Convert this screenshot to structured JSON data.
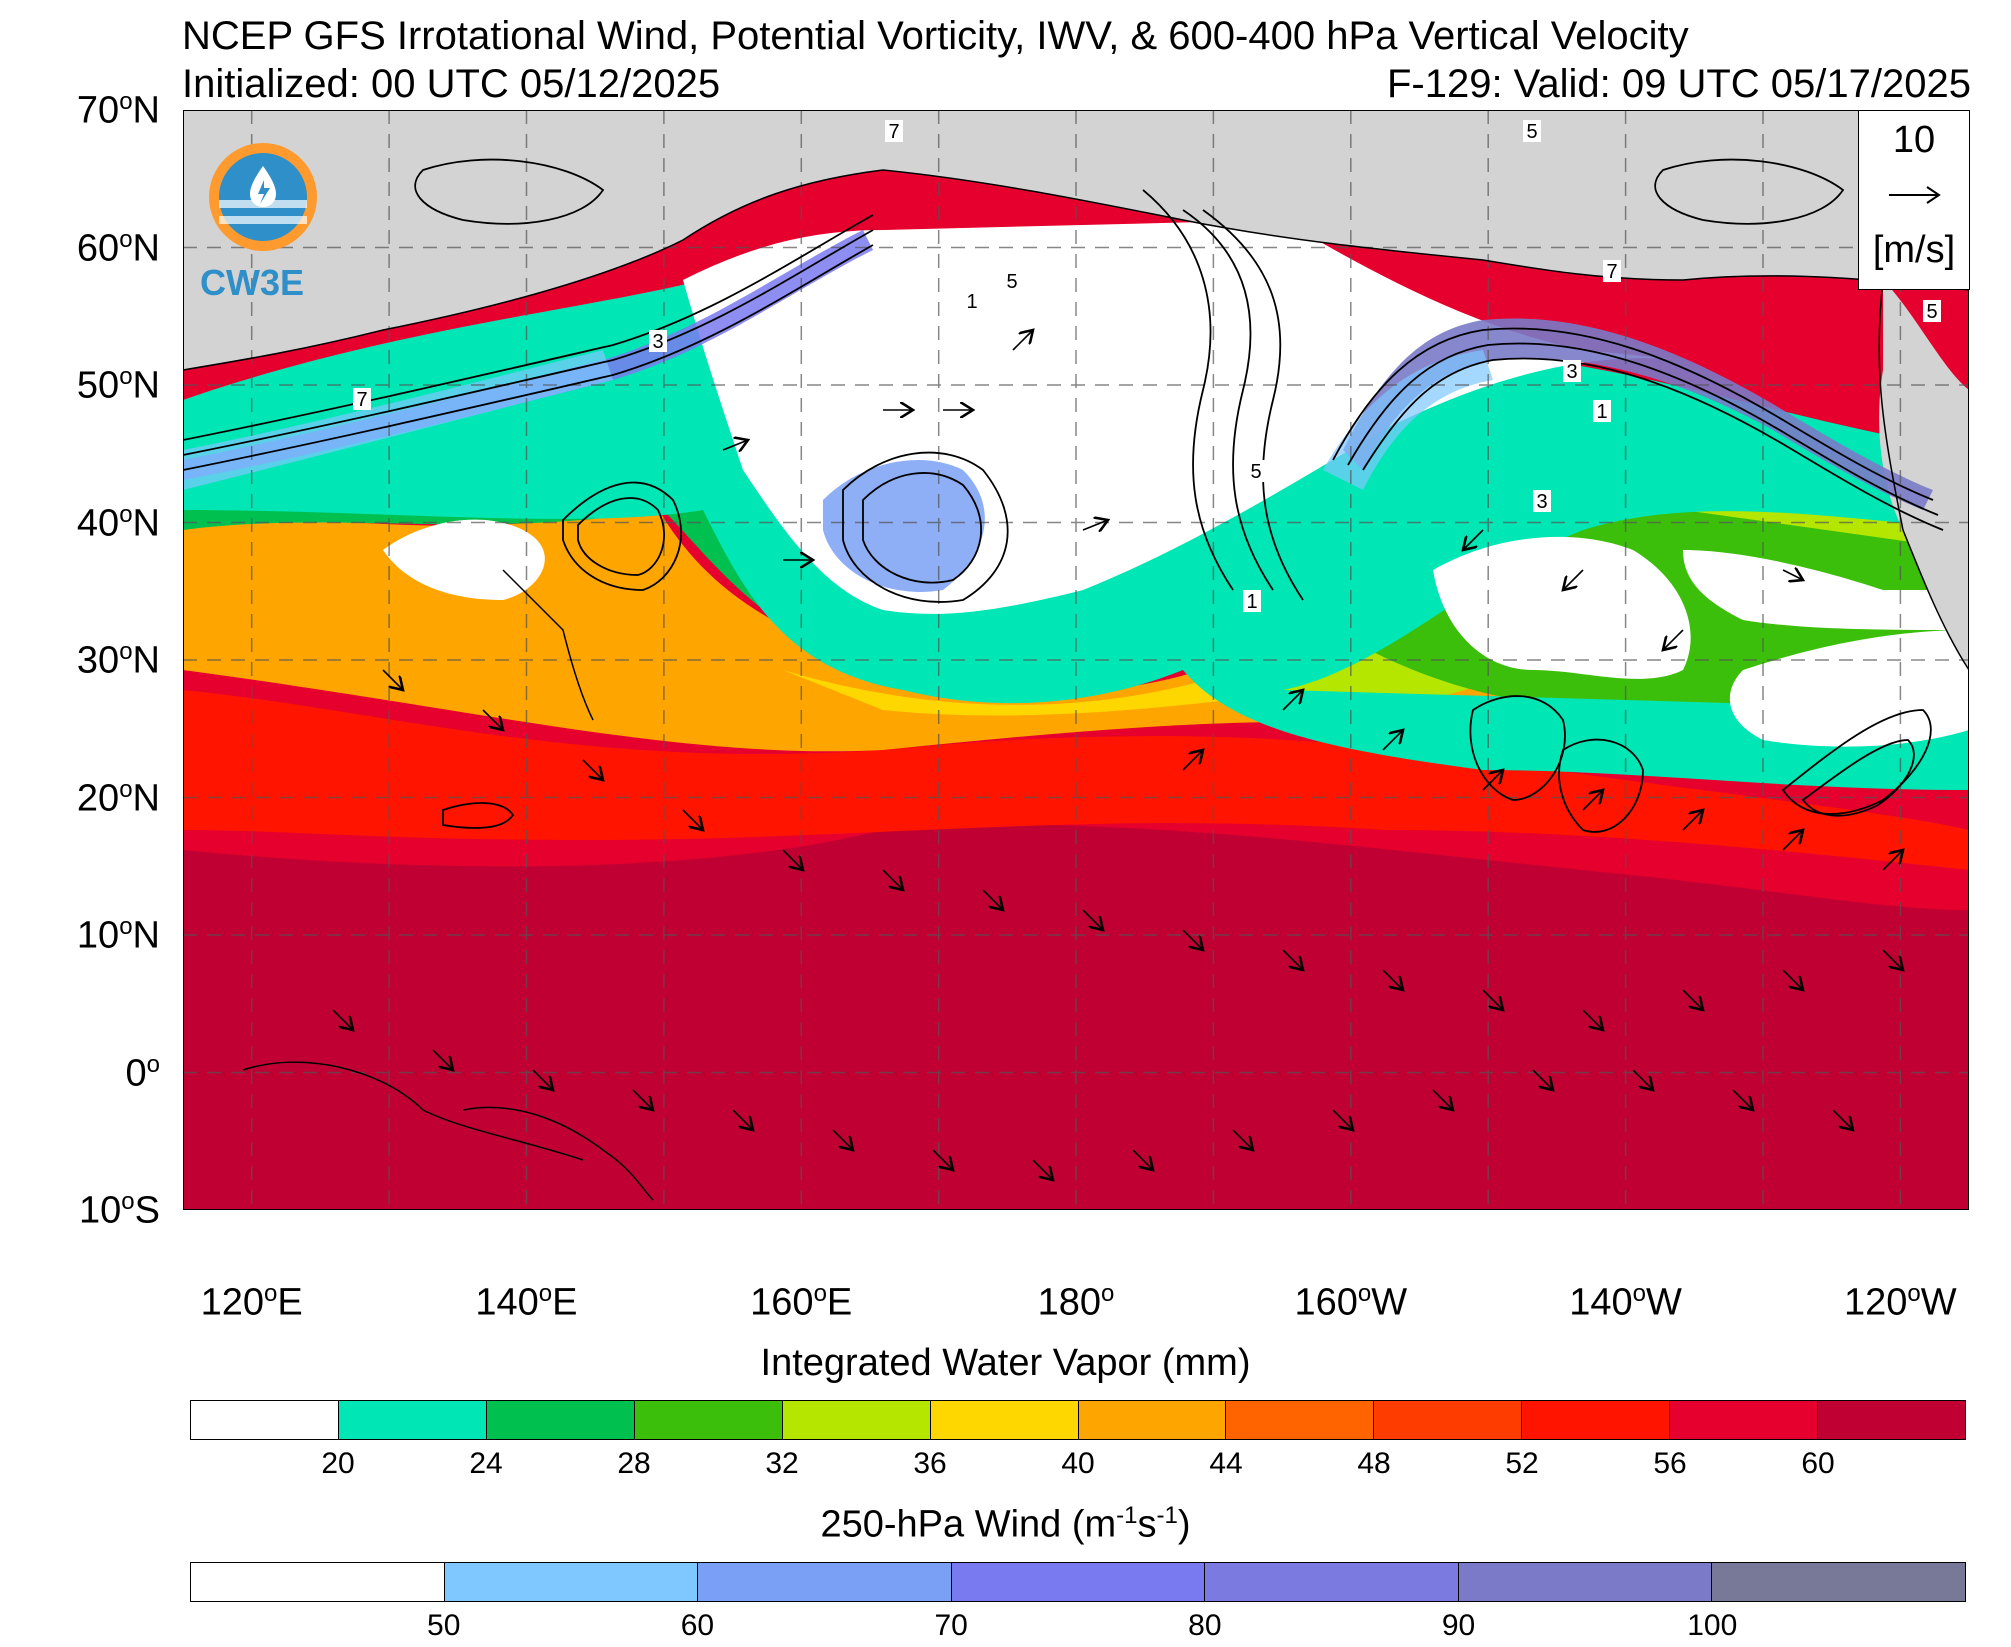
{
  "header": {
    "title": "NCEP GFS Irrotational Wind, Potential Vorticity, IWV, & 600-400 hPa Vertical Velocity",
    "initialized": "Initialized: 00 UTC 05/12/2025",
    "valid": "F-129: Valid: 09 UTC 05/17/2025"
  },
  "logo": {
    "text": "CW3E"
  },
  "reference_vector": {
    "value": "10",
    "units": "[m/s]"
  },
  "axes": {
    "lat_labels": [
      {
        "base": "70",
        "sup": "o",
        "hemi": "N",
        "value": 70
      },
      {
        "base": "60",
        "sup": "o",
        "hemi": "N",
        "value": 60
      },
      {
        "base": "50",
        "sup": "o",
        "hemi": "N",
        "value": 50
      },
      {
        "base": "40",
        "sup": "o",
        "hemi": "N",
        "value": 40
      },
      {
        "base": "30",
        "sup": "o",
        "hemi": "N",
        "value": 30
      },
      {
        "base": "20",
        "sup": "o",
        "hemi": "N",
        "value": 20
      },
      {
        "base": "10",
        "sup": "o",
        "hemi": "N",
        "value": 10
      },
      {
        "base": "0",
        "sup": "o",
        "hemi": "",
        "value": 0
      },
      {
        "base": "10",
        "sup": "o",
        "hemi": "S",
        "value": -10
      }
    ],
    "lon_labels": [
      {
        "base": "120",
        "sup": "o",
        "hemi": "E",
        "value": 120
      },
      {
        "base": "140",
        "sup": "o",
        "hemi": "E",
        "value": 140
      },
      {
        "base": "160",
        "sup": "o",
        "hemi": "E",
        "value": 160
      },
      {
        "base": "180",
        "sup": "o",
        "hemi": "",
        "value": 180
      },
      {
        "base": "160",
        "sup": "o",
        "hemi": "W",
        "value": 200
      },
      {
        "base": "140",
        "sup": "o",
        "hemi": "W",
        "value": 220
      },
      {
        "base": "120",
        "sup": "o",
        "hemi": "W",
        "value": 240
      }
    ],
    "lat_range": [
      -10,
      70
    ],
    "lon_range": [
      115,
      245
    ]
  },
  "colorbar_iwv": {
    "title": "Integrated Water Vapor (mm)",
    "colors": [
      "#ffffff",
      "#00e6b4",
      "#00c050",
      "#3cbf0a",
      "#b4e600",
      "#ffd700",
      "#ffa500",
      "#ff6400",
      "#ff3c00",
      "#ff1400",
      "#e6002d",
      "#c00032"
    ],
    "labels": [
      "20",
      "24",
      "28",
      "32",
      "36",
      "40",
      "44",
      "48",
      "52",
      "56",
      "60"
    ]
  },
  "colorbar_wind": {
    "title_main": "250-hPa Wind (m",
    "title_sup1": "-1",
    "title_mid": "s",
    "title_sup2": "-1",
    "title_end": ")",
    "colors": [
      "#ffffff",
      "#7ec8ff",
      "#7aa0f5",
      "#7a7af0",
      "#7a7ae0",
      "#7a7ac8",
      "#787898"
    ],
    "labels": [
      "50",
      "60",
      "70",
      "80",
      "90",
      "100"
    ]
  },
  "map_colors": {
    "land": "#d3d3d3",
    "iwv_low": "#ffffff",
    "iwv_teal": "#00e6b4",
    "iwv_green": "#00c050",
    "iwv_lime": "#b4e600",
    "iwv_yellow": "#ffd700",
    "iwv_orange": "#ffa500",
    "iwv_red": "#ff3c00",
    "iwv_darkred": "#c00032",
    "jet": "#7a7af0"
  },
  "contour_labels": [
    "7",
    "5",
    "3",
    "1",
    "5",
    "3",
    "1",
    "7",
    "5",
    "3",
    "1",
    "7",
    "5"
  ]
}
